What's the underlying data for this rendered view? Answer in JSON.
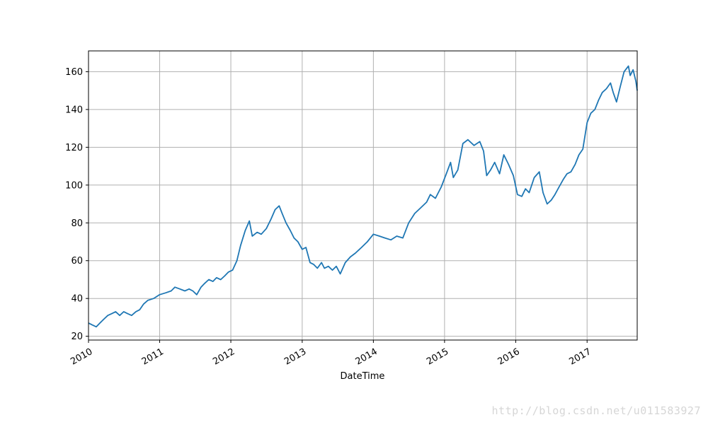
{
  "chart_data": {
    "type": "line",
    "title": "",
    "xlabel": "DateTime",
    "ylabel": "",
    "grid": true,
    "legend": "none",
    "x_range": [
      "2010-01-01",
      "2017-09-15"
    ],
    "ylim": [
      18,
      171
    ],
    "xticks": [
      {
        "date": "2010-01-01",
        "label": "2010"
      },
      {
        "date": "2011-01-01",
        "label": "2011"
      },
      {
        "date": "2012-01-01",
        "label": "2012"
      },
      {
        "date": "2013-01-01",
        "label": "2013"
      },
      {
        "date": "2014-01-01",
        "label": "2014"
      },
      {
        "date": "2015-01-01",
        "label": "2015"
      },
      {
        "date": "2016-01-01",
        "label": "2016"
      },
      {
        "date": "2017-01-01",
        "label": "2017"
      }
    ],
    "yticks": [
      20,
      40,
      60,
      80,
      100,
      120,
      140,
      160
    ],
    "line_color": "#1f77b4",
    "series": [
      {
        "x": [
          "2010-01-01",
          "2010-01-20",
          "2010-02-10",
          "2010-03-01",
          "2010-03-20",
          "2010-04-10",
          "2010-05-01",
          "2010-05-20",
          "2010-06-10",
          "2010-07-01",
          "2010-07-20",
          "2010-08-10",
          "2010-09-01",
          "2010-09-20",
          "2010-10-10",
          "2010-11-01",
          "2010-12-01",
          "2011-01-01",
          "2011-02-01",
          "2011-03-01",
          "2011-03-20",
          "2011-04-15",
          "2011-05-10",
          "2011-06-01",
          "2011-06-20",
          "2011-07-10",
          "2011-08-01",
          "2011-08-20",
          "2011-09-10",
          "2011-10-01",
          "2011-10-20",
          "2011-11-10",
          "2011-12-01",
          "2011-12-20",
          "2012-01-10",
          "2012-02-01",
          "2012-02-20",
          "2012-03-15",
          "2012-04-05",
          "2012-04-20",
          "2012-05-15",
          "2012-06-05",
          "2012-07-01",
          "2012-07-25",
          "2012-08-15",
          "2012-09-05",
          "2012-09-20",
          "2012-10-10",
          "2012-11-01",
          "2012-11-20",
          "2012-12-10",
          "2013-01-01",
          "2013-01-20",
          "2013-02-10",
          "2013-03-01",
          "2013-03-20",
          "2013-04-10",
          "2013-04-25",
          "2013-05-15",
          "2013-06-05",
          "2013-06-25",
          "2013-07-15",
          "2013-08-10",
          "2013-09-05",
          "2013-10-01",
          "2013-11-01",
          "2013-12-01",
          "2014-01-01",
          "2014-02-01",
          "2014-03-01",
          "2014-04-01",
          "2014-05-01",
          "2014-06-01",
          "2014-07-01",
          "2014-08-01",
          "2014-09-01",
          "2014-10-01",
          "2014-10-20",
          "2014-11-15",
          "2014-12-15",
          "2015-01-10",
          "2015-02-01",
          "2015-02-15",
          "2015-03-10",
          "2015-04-05",
          "2015-05-01",
          "2015-06-01",
          "2015-07-01",
          "2015-07-20",
          "2015-08-05",
          "2015-08-25",
          "2015-09-15",
          "2015-10-10",
          "2015-11-01",
          "2015-11-25",
          "2015-12-20",
          "2016-01-10",
          "2016-02-01",
          "2016-02-20",
          "2016-03-10",
          "2016-04-05",
          "2016-05-01",
          "2016-05-20",
          "2016-06-10",
          "2016-07-01",
          "2016-07-20",
          "2016-08-10",
          "2016-09-01",
          "2016-09-20",
          "2016-10-10",
          "2016-11-01",
          "2016-11-20",
          "2016-12-10",
          "2017-01-01",
          "2017-01-20",
          "2017-02-10",
          "2017-03-01",
          "2017-03-20",
          "2017-04-10",
          "2017-05-01",
          "2017-05-15",
          "2017-06-01",
          "2017-06-20",
          "2017-07-10",
          "2017-08-01",
          "2017-08-10",
          "2017-08-25",
          "2017-09-08",
          "2017-09-15"
        ],
        "values": [
          27,
          26,
          25,
          27,
          29,
          31,
          32,
          33,
          31,
          33,
          32,
          31,
          33,
          34,
          37,
          39,
          40,
          42,
          43,
          44,
          46,
          45,
          44,
          45,
          44,
          42,
          46,
          48,
          50,
          49,
          51,
          50,
          52,
          54,
          55,
          60,
          68,
          76,
          81,
          73,
          75,
          74,
          77,
          82,
          87,
          89,
          85,
          80,
          76,
          72,
          70,
          66,
          67,
          59,
          58,
          56,
          59,
          56,
          57,
          55,
          57,
          53,
          59,
          62,
          64,
          67,
          70,
          74,
          73,
          72,
          71,
          73,
          72,
          80,
          85,
          88,
          91,
          95,
          93,
          99,
          106,
          112,
          104,
          108,
          122,
          124,
          121,
          123,
          118,
          105,
          108,
          112,
          106,
          116,
          111,
          105,
          95,
          94,
          98,
          96,
          104,
          107,
          96,
          90,
          92,
          95,
          99,
          103,
          106,
          107,
          111,
          116,
          119,
          133,
          138,
          140,
          145,
          149,
          151,
          154,
          149,
          144,
          152,
          160,
          163,
          158,
          161,
          155,
          150
        ]
      }
    ]
  },
  "watermark": "http://blog.csdn.net/u011583927"
}
